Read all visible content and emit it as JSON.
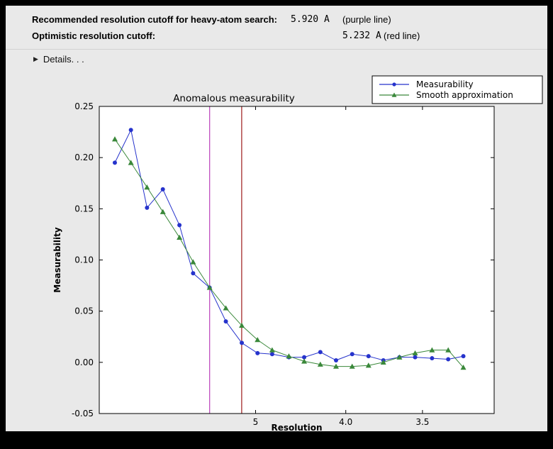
{
  "header": {
    "recommended": {
      "label": "Recommended resolution cutoff for heavy-atom search:",
      "value": "5.920 A",
      "note": "(purple line)"
    },
    "optimistic": {
      "label": "Optimistic resolution cutoff:",
      "value": "5.232 A",
      "note": "(red line)"
    },
    "details_icon": "▶",
    "details_label": "Details. . ."
  },
  "colors": {
    "window_background": "#e9e9e9",
    "plot_background": "#ffffff",
    "measurability_blue": "#2633cc",
    "smooth_green": "#3a883a",
    "purple_cutoff": "#c050c0",
    "red_cutoff": "#a52a2a"
  },
  "chart_data": {
    "type": "line",
    "title": "Anomalous measurability",
    "xlabel": "Resolution",
    "ylabel": "Measurability",
    "x_scale": "1/d^2, resolution in Angstrom decreasing left to right",
    "xlim_d": [
      31.6,
      3.17
    ],
    "ylim": [
      -0.05,
      0.25
    ],
    "grid": false,
    "legend_position": "top-right, outside axes",
    "xticks": [
      {
        "d": 5,
        "label": "5"
      },
      {
        "d": 4,
        "label": "4.0"
      },
      {
        "d": 3.5,
        "label": "3.5"
      }
    ],
    "yticks": [
      {
        "v": -0.05,
        "label": "-0.05"
      },
      {
        "v": 0.0,
        "label": "0.00"
      },
      {
        "v": 0.05,
        "label": "0.05"
      },
      {
        "v": 0.1,
        "label": "0.10"
      },
      {
        "v": 0.15,
        "label": "0.15"
      },
      {
        "v": 0.2,
        "label": "0.20"
      },
      {
        "v": 0.25,
        "label": "0.25"
      }
    ],
    "resolution_d": [
      14.3,
      10.6,
      8.8,
      7.7,
      6.9,
      6.4,
      5.92,
      5.54,
      5.23,
      4.97,
      4.76,
      4.55,
      4.38,
      4.22,
      4.08,
      3.95,
      3.83,
      3.73,
      3.63,
      3.54,
      3.45,
      3.37,
      3.3
    ],
    "series": [
      {
        "name": "Measurability",
        "color": "#2633cc",
        "marker": "circle",
        "values": [
          0.195,
          0.227,
          0.151,
          0.169,
          0.134,
          0.087,
          0.073,
          0.04,
          0.019,
          0.009,
          0.008,
          0.005,
          0.005,
          0.01,
          0.002,
          0.008,
          0.006,
          0.002,
          0.005,
          0.005,
          0.004,
          0.003,
          0.006
        ]
      },
      {
        "name": "Smooth approximation",
        "color": "#3a883a",
        "marker": "triangle",
        "values": [
          0.218,
          0.195,
          0.171,
          0.147,
          0.122,
          0.098,
          0.073,
          0.053,
          0.036,
          0.022,
          0.012,
          0.006,
          0.001,
          -0.002,
          -0.004,
          -0.004,
          -0.003,
          0.0,
          0.005,
          0.009,
          0.012,
          0.012,
          -0.005
        ]
      }
    ],
    "vlines": [
      {
        "d": 5.92,
        "color": "#c050c0",
        "name": "purple-cutoff-line"
      },
      {
        "d": 5.232,
        "color": "#a52a2a",
        "name": "red-cutoff-line"
      }
    ]
  }
}
